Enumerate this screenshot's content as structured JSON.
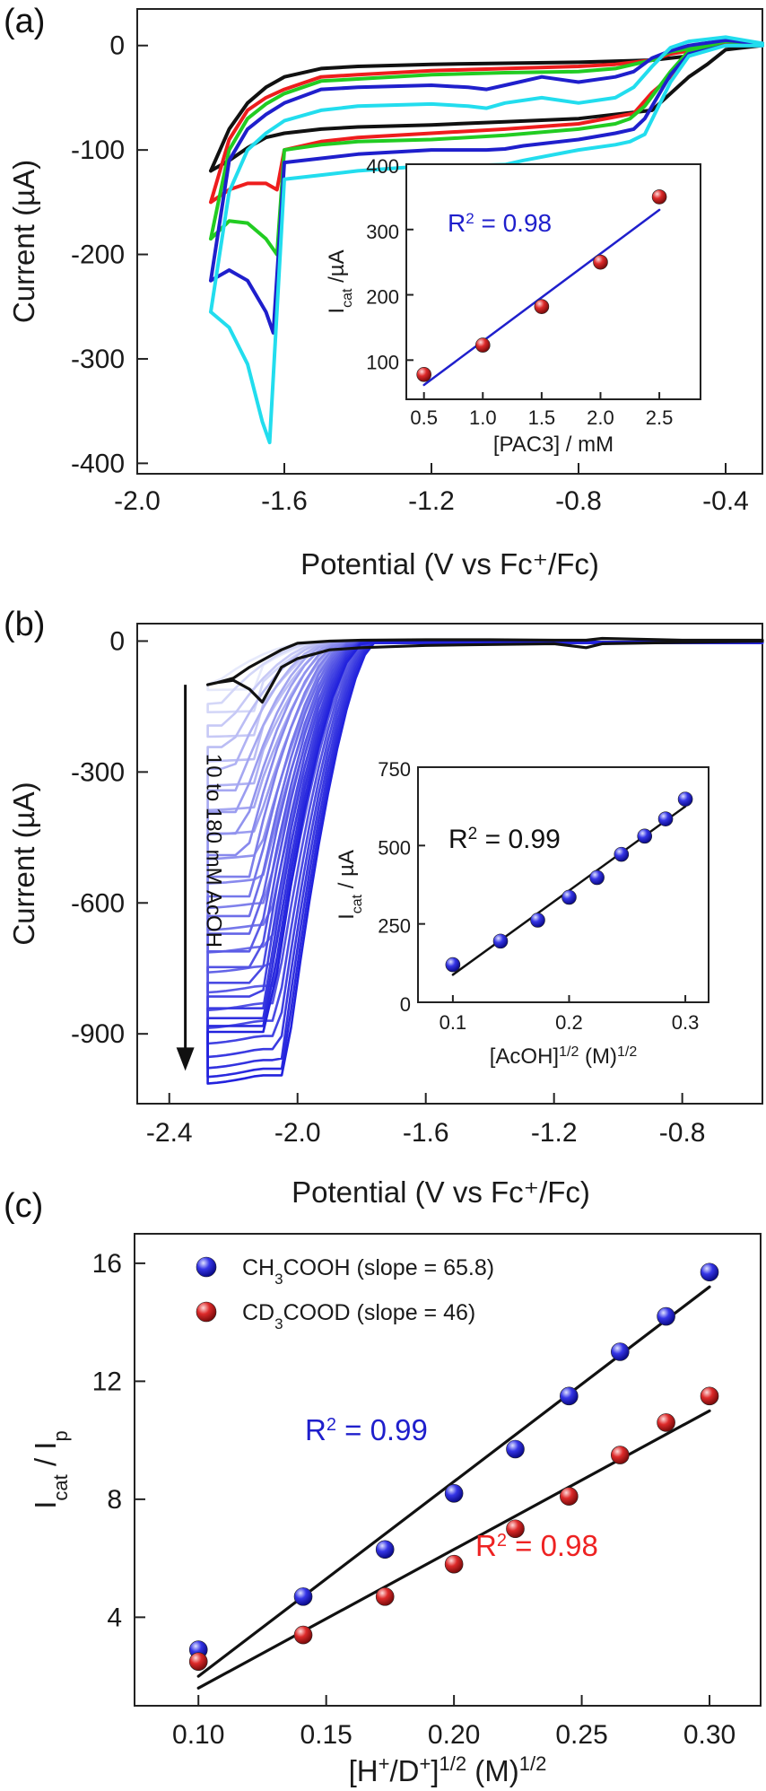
{
  "panels": {
    "a": "(a)",
    "b": "(b)",
    "c": "(c)"
  },
  "chart_data": [
    {
      "id": "a-main",
      "type": "line",
      "xlabel": "Potential (V vs Fc⁺/Fc)",
      "ylabel": "Current (µA)",
      "xlim": [
        -2.0,
        -0.3
      ],
      "ylim": [
        -410,
        35
      ],
      "xticks": [
        -2.0,
        -1.6,
        -1.2,
        -0.8,
        -0.4
      ],
      "xtick_labels": [
        "-2.0",
        "-1.6",
        "-1.2",
        "-0.8",
        "-0.4"
      ],
      "yticks": [
        0,
        -100,
        -200,
        -300,
        -400
      ],
      "ytick_labels": [
        "0",
        "-100",
        "-200",
        "-300",
        "-400"
      ],
      "series": [
        {
          "color": "#111111",
          "x": [
            -1.8,
            -1.75,
            -1.7,
            -1.65,
            -1.6,
            -1.5,
            -1.4,
            -1.2,
            -1.0,
            -0.8,
            -0.6,
            -0.5,
            -0.45,
            -0.4,
            -0.3,
            -0.3,
            -0.4,
            -0.5,
            -0.6,
            -0.8,
            -1.0,
            -1.2,
            -1.4,
            -1.5,
            -1.6,
            -1.65,
            -1.7,
            -1.75,
            -1.8
          ],
          "y": [
            -120,
            -110,
            -98,
            -88,
            -84,
            -80,
            -78,
            -76,
            -73,
            -70,
            -62,
            -30,
            -18,
            -4,
            0,
            2,
            4,
            -10,
            -14,
            -16,
            -17,
            -18,
            -20,
            -22,
            -30,
            -40,
            -55,
            -80,
            -120
          ]
        },
        {
          "color": "#ee1d1d",
          "x": [
            -1.8,
            -1.75,
            -1.7,
            -1.65,
            -1.62,
            -1.6,
            -1.5,
            -1.4,
            -1.2,
            -1.0,
            -0.8,
            -0.65,
            -0.6,
            -0.55,
            -0.5,
            -0.4,
            -0.3,
            -0.3,
            -0.4,
            -0.5,
            -0.55,
            -0.6,
            -0.7,
            -0.8,
            -1.0,
            -1.2,
            -1.4,
            -1.5,
            -1.6,
            -1.65,
            -1.7,
            -1.75,
            -1.8
          ],
          "y": [
            -150,
            -138,
            -132,
            -132,
            -138,
            -100,
            -92,
            -88,
            -84,
            -80,
            -75,
            -65,
            -45,
            -30,
            -5,
            0,
            0,
            2,
            3,
            -5,
            -8,
            -14,
            -18,
            -20,
            -22,
            -24,
            -28,
            -30,
            -42,
            -50,
            -62,
            -90,
            -150
          ]
        },
        {
          "color": "#22cc22",
          "x": [
            -1.8,
            -1.75,
            -1.7,
            -1.65,
            -1.62,
            -1.6,
            -1.5,
            -1.4,
            -1.2,
            -1.0,
            -0.8,
            -0.7,
            -0.66,
            -0.62,
            -0.55,
            -0.5,
            -0.4,
            -0.3,
            -0.3,
            -0.4,
            -0.5,
            -0.55,
            -0.6,
            -0.7,
            -0.8,
            -1.0,
            -1.2,
            -1.4,
            -1.5,
            -1.6,
            -1.65,
            -1.7,
            -1.75,
            -1.8
          ],
          "y": [
            -185,
            -168,
            -170,
            -185,
            -200,
            -100,
            -95,
            -92,
            -90,
            -86,
            -80,
            -75,
            -70,
            -58,
            -25,
            -5,
            0,
            0,
            2,
            4,
            -3,
            -6,
            -14,
            -22,
            -25,
            -26,
            -28,
            -32,
            -34,
            -46,
            -56,
            -70,
            -100,
            -185
          ]
        },
        {
          "color": "#1f1fcc",
          "x": [
            -1.8,
            -1.75,
            -1.7,
            -1.65,
            -1.63,
            -1.6,
            -1.5,
            -1.4,
            -1.2,
            -1.05,
            -1.0,
            -0.95,
            -0.8,
            -0.7,
            -0.65,
            -0.62,
            -0.55,
            -0.5,
            -0.4,
            -0.3,
            -0.3,
            -0.4,
            -0.5,
            -0.55,
            -0.6,
            -0.65,
            -0.7,
            -0.8,
            -0.9,
            -1.0,
            -1.05,
            -1.1,
            -1.2,
            -1.4,
            -1.5,
            -1.6,
            -1.65,
            -1.7,
            -1.75,
            -1.8
          ],
          "y": [
            -225,
            -215,
            -225,
            -255,
            -275,
            -112,
            -108,
            -104,
            -100,
            -100,
            -99,
            -96,
            -90,
            -84,
            -80,
            -70,
            -28,
            -8,
            0,
            0,
            2,
            5,
            0,
            -5,
            -12,
            -25,
            -30,
            -35,
            -30,
            -38,
            -42,
            -40,
            -38,
            -40,
            -42,
            -55,
            -66,
            -80,
            -110,
            -225
          ]
        },
        {
          "color": "#22ddee",
          "x": [
            -1.8,
            -1.75,
            -1.7,
            -1.66,
            -1.64,
            -1.6,
            -1.5,
            -1.4,
            -1.2,
            -1.1,
            -1.0,
            -0.95,
            -0.8,
            -0.7,
            -0.66,
            -0.62,
            -0.55,
            -0.5,
            -0.4,
            -0.3,
            -0.3,
            -0.4,
            -0.5,
            -0.55,
            -0.6,
            -0.65,
            -0.7,
            -0.8,
            -0.9,
            -1.0,
            -1.05,
            -1.1,
            -1.2,
            -1.4,
            -1.5,
            -1.6,
            -1.65,
            -1.7,
            -1.75,
            -1.8
          ],
          "y": [
            -255,
            -270,
            -305,
            -360,
            -380,
            -128,
            -124,
            -120,
            -115,
            -115,
            -114,
            -110,
            -100,
            -95,
            -92,
            -85,
            -35,
            -10,
            0,
            0,
            2,
            8,
            4,
            -2,
            -20,
            -40,
            -50,
            -55,
            -50,
            -55,
            -60,
            -58,
            -56,
            -58,
            -62,
            -72,
            -84,
            -100,
            -140,
            -255
          ]
        }
      ]
    },
    {
      "id": "a-inset",
      "type": "scatter",
      "xlabel": "[PAC3] / mM",
      "ylabel": "I_cat /µA",
      "ylabel_main": "I",
      "ylabel_sub": "cat",
      "ylabel_rest": " /µA",
      "xlim": [
        0.35,
        2.85
      ],
      "ylim": [
        40,
        400
      ],
      "xticks": [
        0.5,
        1.0,
        1.5,
        2.0,
        2.5
      ],
      "xtick_labels": [
        "0.5",
        "1.0",
        "1.5",
        "2.0",
        "2.5"
      ],
      "yticks": [
        100,
        200,
        300,
        400
      ],
      "ytick_labels": [
        "100",
        "200",
        "300",
        "400"
      ],
      "annotation": {
        "text_main": "R",
        "text_sup": "2",
        "text_rest": " = 0.98",
        "color": "#1f1fcc"
      },
      "points": {
        "color": "#ee2222",
        "x": [
          0.5,
          1.0,
          1.5,
          2.0,
          2.5
        ],
        "y": [
          78,
          123,
          182,
          250,
          350
        ]
      },
      "fit": {
        "color": "#1f1fcc",
        "x": [
          0.5,
          2.5
        ],
        "y": [
          62,
          330
        ]
      }
    },
    {
      "id": "b-main",
      "type": "line",
      "xlabel": "Potential (V vs Fc⁺/Fc)",
      "ylabel": "Current (µA)",
      "xlim": [
        -2.5,
        -0.55
      ],
      "ylim": [
        -1060,
        40
      ],
      "xticks": [
        -2.4,
        -2.0,
        -1.6,
        -1.2,
        -0.8
      ],
      "xtick_labels": [
        "-2.4",
        "-2.0",
        "-1.6",
        "-1.2",
        "-0.8"
      ],
      "yticks": [
        0,
        -300,
        -600,
        -900
      ],
      "ytick_labels": [
        "0",
        "-300",
        "-600",
        "-900"
      ],
      "arrow_label": "10 to 180 mM AcOH",
      "blank_curve": {
        "color": "#111111",
        "x": [
          -2.28,
          -2.25,
          -2.2,
          -2.15,
          -2.11,
          -2.05,
          -2.0,
          -1.9,
          -1.8,
          -1.6,
          -1.4,
          -1.2,
          -1.1,
          -1.05,
          -0.8,
          -0.55,
          -0.55,
          -0.8,
          -1.05,
          -1.1,
          -1.2,
          -1.4,
          -1.6,
          -1.8,
          -1.9,
          -2.0,
          -2.05,
          -2.1,
          -2.15,
          -2.2,
          -2.25,
          -2.28
        ],
        "y": [
          -100,
          -95,
          -90,
          -110,
          -140,
          -60,
          -40,
          -20,
          -15,
          -10,
          -8,
          -6,
          -15,
          -6,
          -3,
          0,
          2,
          2,
          6,
          2,
          2,
          3,
          3,
          2,
          0,
          -5,
          -20,
          -40,
          -60,
          -85,
          -95,
          -100
        ]
      },
      "acid_series": {
        "color_start": "#e6e9fb",
        "color_end": "#2222dd",
        "min_currents": [
          -110,
          -160,
          -215,
          -270,
          -325,
          -380,
          -435,
          -490,
          -545,
          -600,
          -650,
          -700,
          -745,
          -790,
          -830,
          -870,
          -905,
          -935,
          -960,
          -980,
          -995
        ],
        "onset_potentials": [
          -1.98,
          -1.96,
          -1.94,
          -1.93,
          -1.92,
          -1.91,
          -1.9,
          -1.89,
          -1.88,
          -1.87,
          -1.86,
          -1.855,
          -1.85,
          -1.845,
          -1.84,
          -1.835,
          -1.83,
          -1.825,
          -1.82,
          -1.815,
          -1.81
        ]
      }
    },
    {
      "id": "b-inset",
      "type": "scatter",
      "xlabel": "[AcOH]^1/2 (M)^1/2",
      "xlabel_parts": [
        "[AcOH]",
        "1/2",
        " (M)",
        "1/2"
      ],
      "ylabel": "I_cat / µA",
      "ylabel_main": "I",
      "ylabel_sub": "cat",
      "ylabel_rest": " / µA",
      "xlim": [
        0.07,
        0.32
      ],
      "ylim": [
        0,
        750
      ],
      "xticks": [
        0.1,
        0.2,
        0.3
      ],
      "xtick_labels": [
        "0.1",
        "0.2",
        "0.3"
      ],
      "yticks": [
        0,
        250,
        500,
        750
      ],
      "ytick_labels": [
        "0",
        "250",
        "500",
        "750"
      ],
      "annotation": {
        "text_main": "R",
        "text_sup": "2",
        "text_rest": " = 0.99",
        "color": "#111111"
      },
      "points": {
        "color": "#2a2ae0",
        "x": [
          0.1,
          0.141,
          0.173,
          0.2,
          0.224,
          0.245,
          0.265,
          0.283,
          0.3
        ],
        "y": [
          120,
          195,
          262,
          335,
          398,
          472,
          530,
          585,
          648
        ]
      },
      "fit": {
        "color": "#111111",
        "x": [
          0.1,
          0.3
        ],
        "y": [
          88,
          625
        ]
      }
    },
    {
      "id": "c",
      "type": "scatter",
      "xlabel": "[H⁺/D⁺]^1/2 (M)^1/2",
      "xlabel_parts": [
        "[H",
        "+",
        "/D",
        "+",
        "]",
        "1/2",
        " (M)",
        "1/2"
      ],
      "ylabel": "I_cat / I_p",
      "ylabel_parts": [
        "I",
        "cat",
        " / I",
        "p"
      ],
      "xlim": [
        0.075,
        0.32
      ],
      "ylim": [
        1,
        17
      ],
      "xticks": [
        0.1,
        0.15,
        0.2,
        0.25,
        0.3
      ],
      "xtick_labels": [
        "0.10",
        "0.15",
        "0.20",
        "0.25",
        "0.30"
      ],
      "yticks": [
        4,
        8,
        12,
        16
      ],
      "ytick_labels": [
        "4",
        "8",
        "12",
        "16"
      ],
      "legend": [
        {
          "parts": [
            "CH",
            "3",
            "COOH (slope = 65.8)"
          ],
          "color": "#2a2ae0"
        },
        {
          "parts": [
            "CD",
            "3",
            "COOD (slope = 46)"
          ],
          "color": "#cc1f1f"
        }
      ],
      "annotations": [
        {
          "text_main": "R",
          "text_sup": "2",
          "text_rest": " = 0.99",
          "color": "#1f1fcc"
        },
        {
          "text_main": "R",
          "text_sup": "2",
          "text_rest": " = 0.98",
          "color": "#ee2222"
        }
      ],
      "series": [
        {
          "name": "CH3COOH (slope = 65.8)",
          "color": "#2a2ae0",
          "x": [
            0.1,
            0.141,
            0.173,
            0.2,
            0.224,
            0.245,
            0.265,
            0.283,
            0.3
          ],
          "y": [
            2.9,
            4.7,
            6.3,
            8.2,
            9.7,
            11.5,
            13.0,
            14.2,
            15.7
          ],
          "fit": {
            "x": [
              0.1,
              0.3
            ],
            "y": [
              2.0,
              15.2
            ]
          }
        },
        {
          "name": "CD3COOD (slope = 46)",
          "color": "#cc1f1f",
          "x": [
            0.1,
            0.141,
            0.173,
            0.2,
            0.224,
            0.245,
            0.265,
            0.283,
            0.3
          ],
          "y": [
            2.5,
            3.4,
            4.7,
            5.8,
            7.0,
            8.1,
            9.5,
            10.6,
            11.5
          ],
          "fit": {
            "x": [
              0.1,
              0.3
            ],
            "y": [
              1.6,
              11.0
            ]
          }
        }
      ]
    }
  ]
}
